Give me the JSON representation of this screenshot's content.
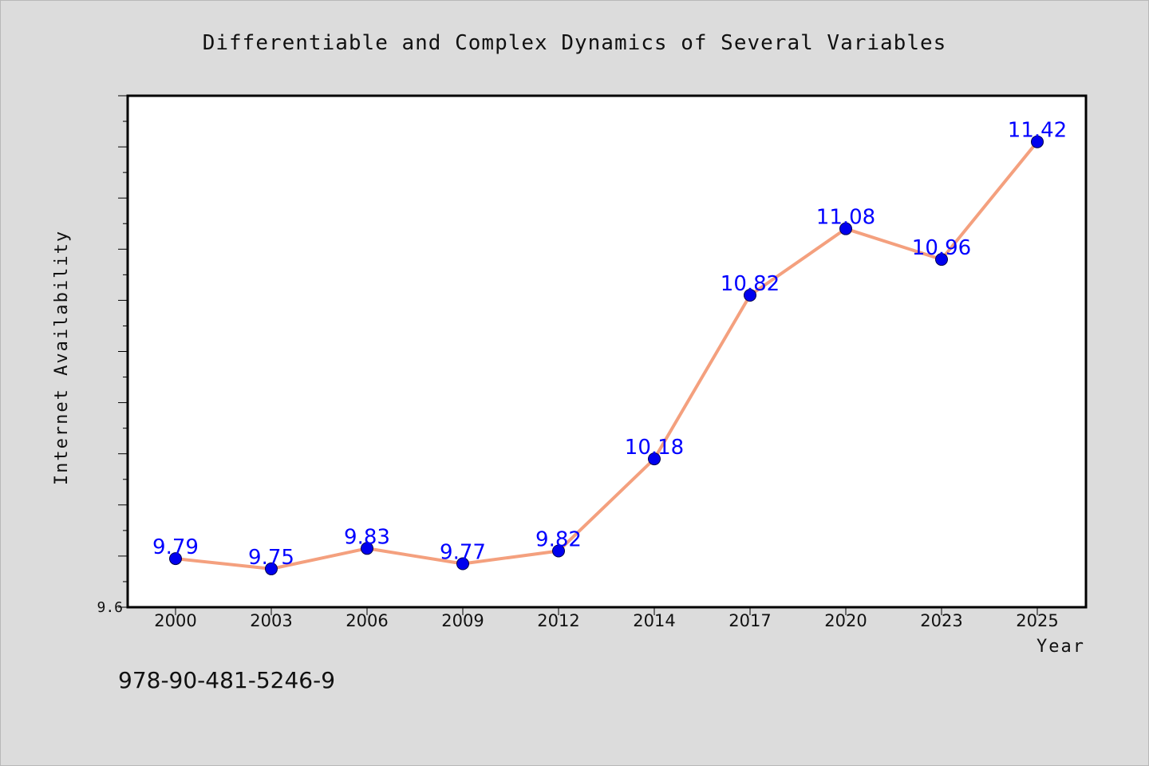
{
  "chart_data": {
    "type": "line",
    "title": "Differentiable and Complex Dynamics of Several Variables",
    "xlabel": "Year",
    "ylabel": "Internet Availability",
    "categories": [
      "2000",
      "2003",
      "2006",
      "2009",
      "2012",
      "2014",
      "2017",
      "2020",
      "2023",
      "2025"
    ],
    "series": [
      {
        "values": [
          9.79,
          9.75,
          9.83,
          9.77,
          9.82,
          10.18,
          10.82,
          11.08,
          10.96,
          11.42
        ]
      }
    ],
    "ylim": [
      9.6,
      11.6
    ],
    "y_tick_labels": [
      "9.6"
    ],
    "data_labels": [
      "9.79",
      "9.75",
      "9.83",
      "9.77",
      "9.82",
      "10.18",
      "10.82",
      "11.08",
      "10.96",
      "11.42"
    ],
    "grid": false,
    "legend": "none",
    "colors": {
      "line": "#f4a07e",
      "marker": "#0000ee",
      "marker_edge": "#00004a",
      "data_label": "#0000ff",
      "background": "#dcdcdc",
      "plot_background": "#ffffff"
    }
  },
  "footer": {
    "isbn": "978-90-481-5246-9"
  }
}
